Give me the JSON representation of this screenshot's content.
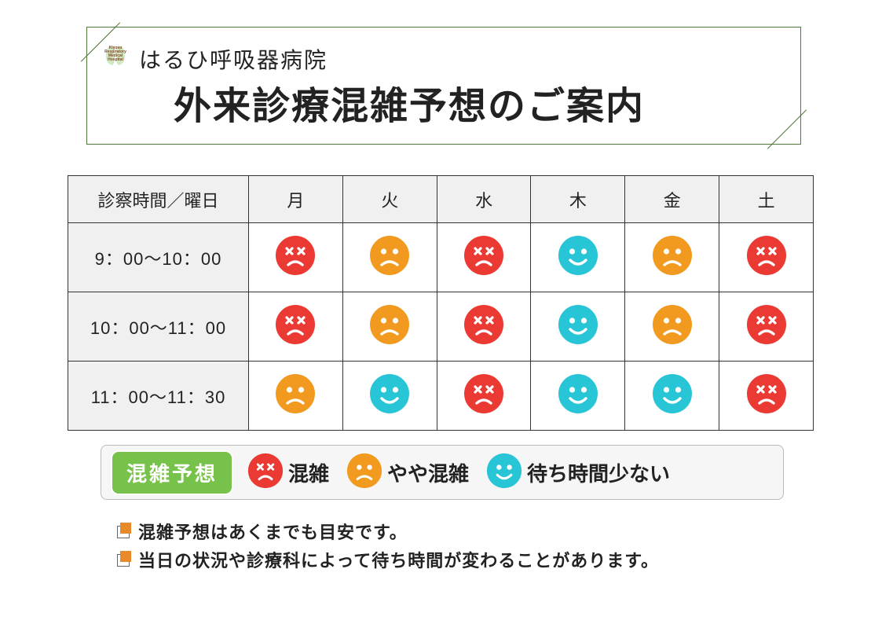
{
  "colors": {
    "header_border": "#4f7a3a",
    "table_border": "#333333",
    "header_cell_bg": "#f0f0f0",
    "page_bg": "#ffffff",
    "legend_bg": "#f6f6f6",
    "legend_border": "#bbbbbb",
    "legend_badge_bg": "#77c24a",
    "legend_badge_fg": "#ffffff",
    "note_bullet_accent": "#e98a2a",
    "face_crowded": "#eb3a33",
    "face_medium": "#f29a1f",
    "face_light": "#28c5d6"
  },
  "header": {
    "logo_lines": [
      "Kiyosu",
      "Respiratory",
      "Medical",
      "Hospital"
    ],
    "hospital_name": "はるひ呼吸器病院",
    "title": "外来診療混雑予想のご案内"
  },
  "table": {
    "time_header": "診察時間／曜日",
    "day_headers": [
      "月",
      "火",
      "水",
      "木",
      "金",
      "土"
    ],
    "rows": [
      {
        "time": "9：00～10：00",
        "cells": [
          "crowded",
          "medium",
          "crowded",
          "light",
          "medium",
          "crowded"
        ]
      },
      {
        "time": "10：00～11：00",
        "cells": [
          "crowded",
          "medium",
          "crowded",
          "light",
          "medium",
          "crowded"
        ]
      },
      {
        "time": "11：00～11：30",
        "cells": [
          "medium",
          "light",
          "crowded",
          "light",
          "light",
          "crowded"
        ]
      }
    ]
  },
  "legend": {
    "badge": "混雑予想",
    "items": [
      {
        "level": "crowded",
        "label": "混雑"
      },
      {
        "level": "medium",
        "label": "やや混雑"
      },
      {
        "level": "light",
        "label": "待ち時間少ない"
      }
    ]
  },
  "notes": [
    "混雑予想はあくまでも目安です。",
    "当日の状況や診療科によって待ち時間が変わることがあります。"
  ]
}
